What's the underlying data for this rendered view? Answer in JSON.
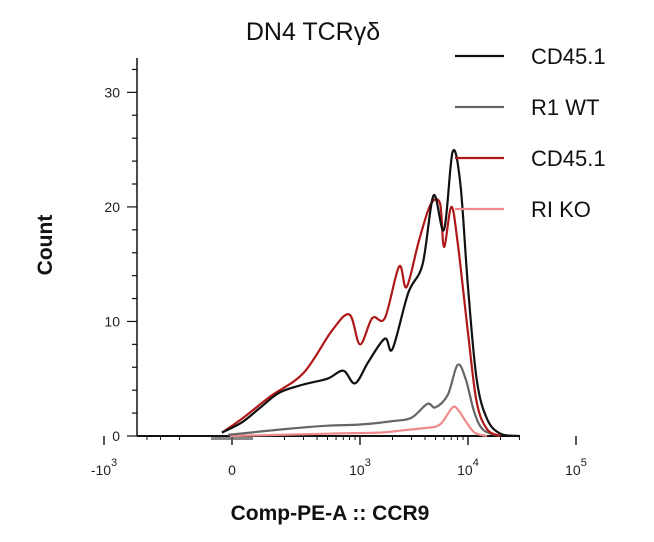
{
  "chart_data": {
    "type": "line",
    "title": "DN4 TCRγδ",
    "xlabel": "Comp-PE-A :: CCR9",
    "ylabel": "Count",
    "x_scale": "biexponential",
    "xlim": [
      -1500,
      150000
    ],
    "ylim": [
      0,
      33
    ],
    "y_ticks": [
      0,
      10,
      20,
      30
    ],
    "x_ticks": [
      {
        "value": -1000,
        "label": "-10",
        "exp": "3"
      },
      {
        "value": 0,
        "label": "0",
        "exp": ""
      },
      {
        "value": 1000,
        "label": "10",
        "exp": "3"
      },
      {
        "value": 10000,
        "label": "10",
        "exp": "4"
      },
      {
        "value": 100000,
        "label": "10",
        "exp": "5"
      }
    ],
    "grid": false,
    "legend_position": "top-right",
    "series": [
      {
        "name": "CD45.1",
        "color": "#111111",
        "points": [
          [
            -50,
            0.3
          ],
          [
            50,
            1.2
          ],
          [
            120,
            2.5
          ],
          [
            180,
            3.8
          ],
          [
            300,
            4.5
          ],
          [
            500,
            5.0
          ],
          [
            700,
            5.7
          ],
          [
            900,
            4.6
          ],
          [
            1200,
            6.5
          ],
          [
            1700,
            8.5
          ],
          [
            2000,
            7.6
          ],
          [
            2800,
            12.5
          ],
          [
            3800,
            15.0
          ],
          [
            4800,
            21.0
          ],
          [
            6000,
            18.0
          ],
          [
            7200,
            24.8
          ],
          [
            8500,
            22.0
          ],
          [
            10000,
            13.0
          ],
          [
            12000,
            5.0
          ],
          [
            15000,
            1.5
          ],
          [
            20000,
            0.2
          ],
          [
            30000,
            0
          ]
        ]
      },
      {
        "name": "R1 WT",
        "color": "#666666",
        "points": [
          [
            -20,
            0.1
          ],
          [
            200,
            0.6
          ],
          [
            500,
            0.9
          ],
          [
            1000,
            1.0
          ],
          [
            2000,
            1.3
          ],
          [
            3000,
            1.6
          ],
          [
            4200,
            2.8
          ],
          [
            5000,
            2.5
          ],
          [
            6500,
            3.6
          ],
          [
            8000,
            6.2
          ],
          [
            9500,
            5.0
          ],
          [
            11500,
            2.0
          ],
          [
            14000,
            0.5
          ],
          [
            20000,
            0
          ]
        ]
      },
      {
        "name": "CD45.1",
        "color": "#b01818",
        "points": [
          [
            -50,
            0.3
          ],
          [
            50,
            1.5
          ],
          [
            150,
            3.5
          ],
          [
            300,
            5.5
          ],
          [
            550,
            9.2
          ],
          [
            800,
            10.6
          ],
          [
            1000,
            8.0
          ],
          [
            1300,
            10.3
          ],
          [
            1700,
            10.3
          ],
          [
            2300,
            14.8
          ],
          [
            2700,
            13.0
          ],
          [
            3500,
            17.0
          ],
          [
            4500,
            20.2
          ],
          [
            5500,
            20.3
          ],
          [
            6000,
            16.5
          ],
          [
            7000,
            20.0
          ],
          [
            8000,
            17.0
          ],
          [
            10000,
            9.0
          ],
          [
            12000,
            3.0
          ],
          [
            15000,
            0.6
          ],
          [
            20000,
            0
          ]
        ]
      },
      {
        "name": "RI KO",
        "color": "#ee8a8a",
        "points": [
          [
            -10,
            0
          ],
          [
            500,
            0.2
          ],
          [
            1500,
            0.3
          ],
          [
            2500,
            0.5
          ],
          [
            4000,
            0.7
          ],
          [
            5500,
            1.0
          ],
          [
            7200,
            2.5
          ],
          [
            8200,
            2.2
          ],
          [
            9500,
            1.3
          ],
          [
            11500,
            0.3
          ],
          [
            15000,
            0
          ]
        ]
      }
    ]
  }
}
